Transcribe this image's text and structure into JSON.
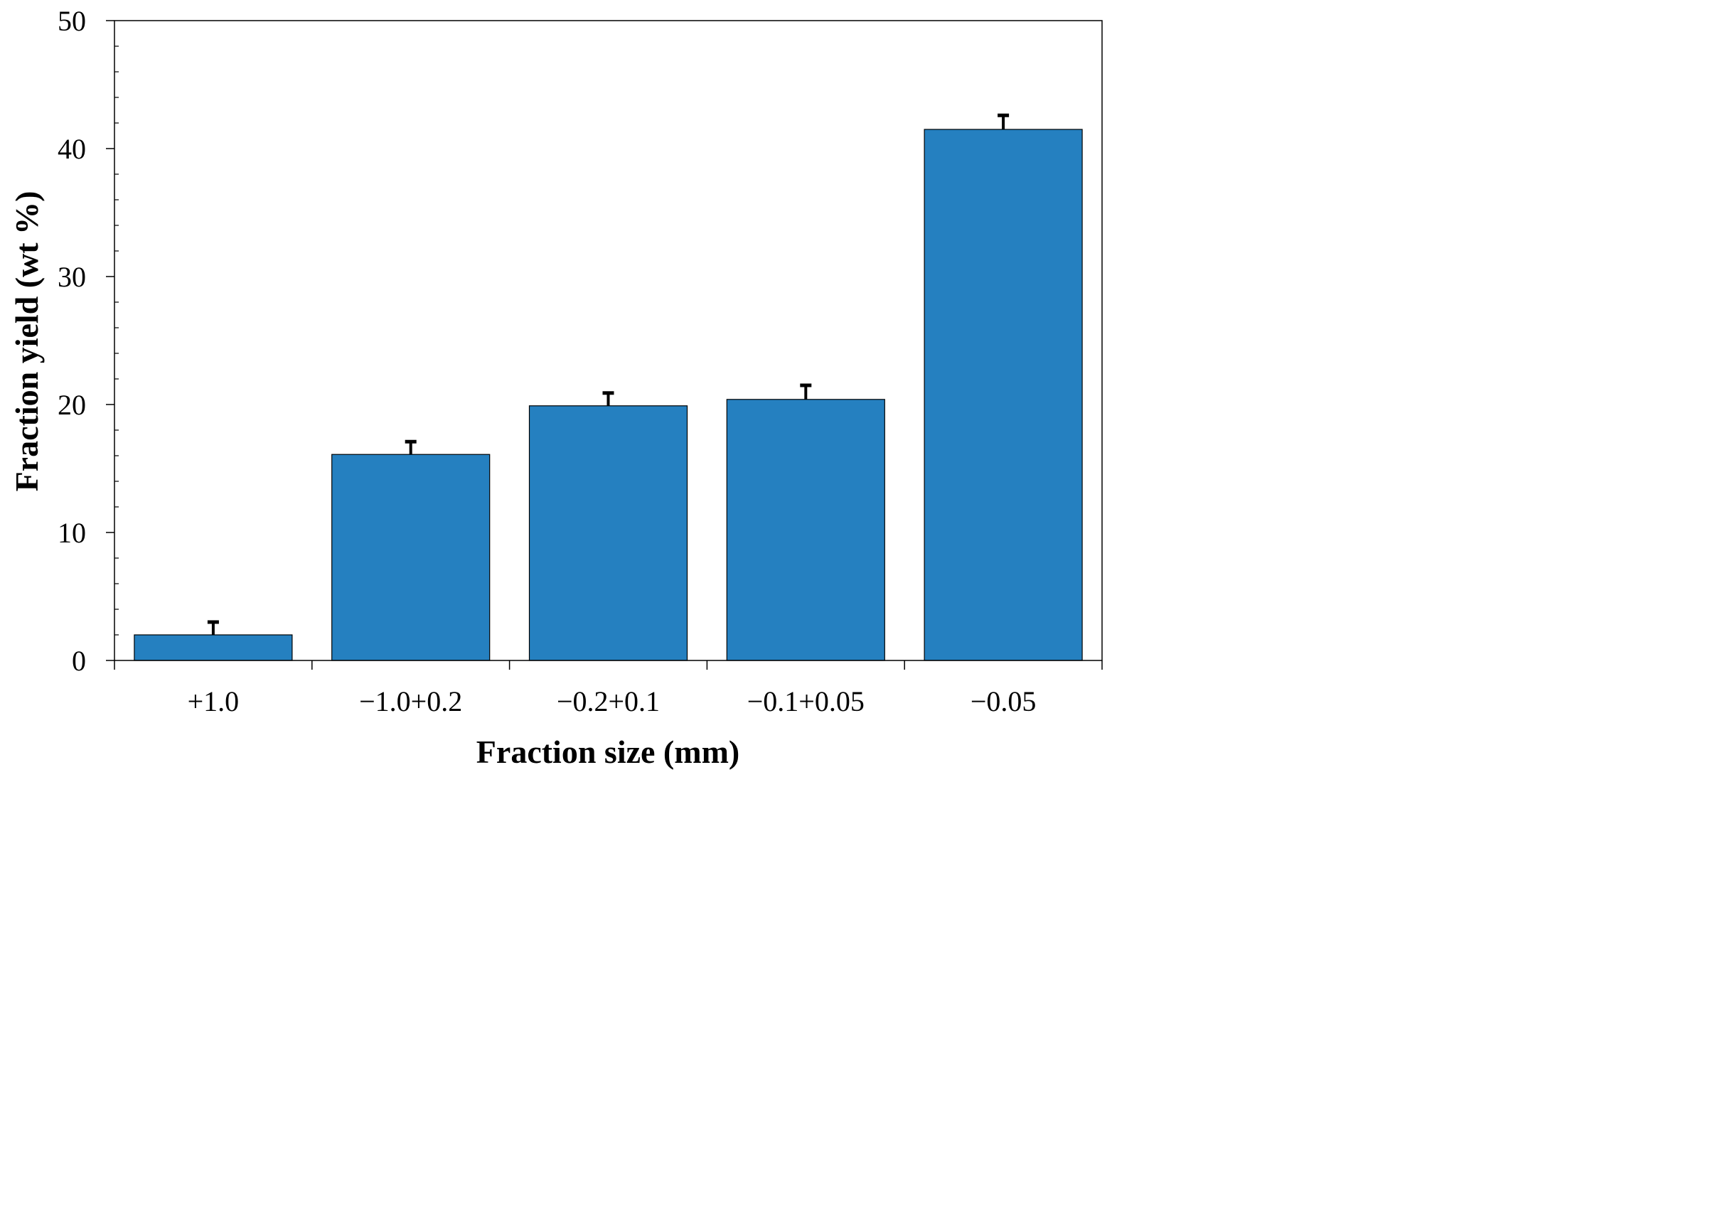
{
  "chart_data": {
    "type": "bar",
    "title": "",
    "xlabel": "Fraction size (mm)",
    "ylabel": "Fraction yield (wt %)",
    "categories": [
      "+1.0",
      "−1.0+0.2",
      "−0.2+0.1",
      "−0.1+0.05",
      "−0.05"
    ],
    "values": [
      2.0,
      16.1,
      19.9,
      20.4,
      41.5
    ],
    "error_plus": [
      1.0,
      1.0,
      1.0,
      1.1,
      1.1
    ],
    "ylim": [
      0,
      50
    ],
    "y_ticks": [
      0,
      10,
      20,
      30,
      40,
      50
    ],
    "y_minor_step": 2,
    "grid": false,
    "legend": "none",
    "bar_color": "#2580C0",
    "bar_edge_color": "#000000",
    "error_bar_color": "#000000"
  }
}
